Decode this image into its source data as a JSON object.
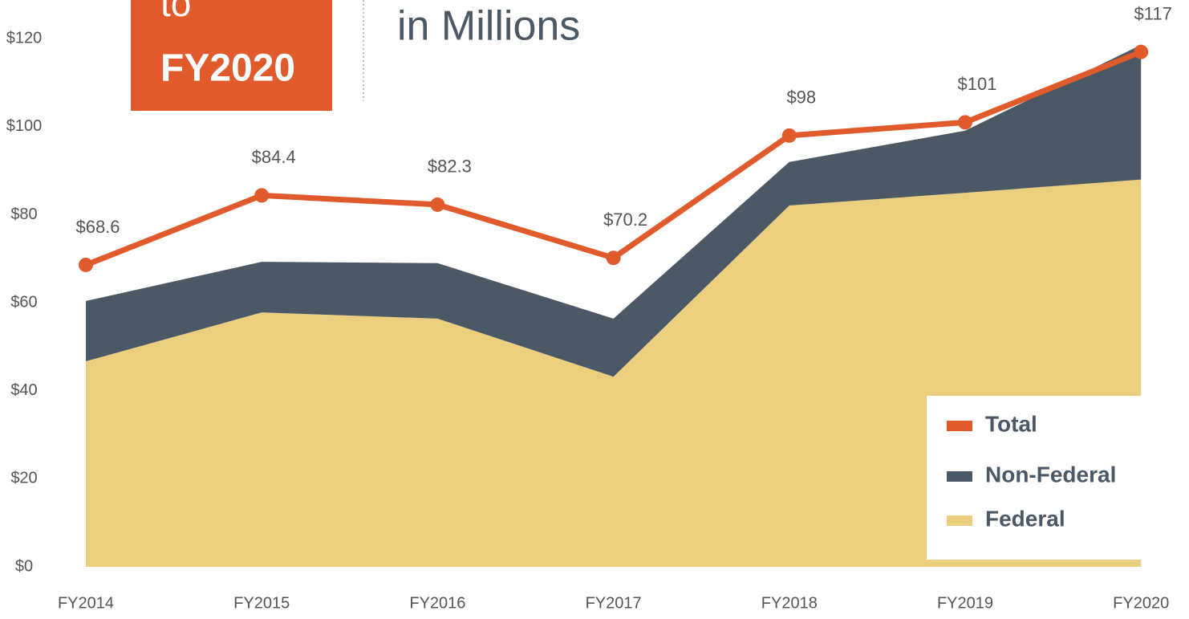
{
  "chart_data": {
    "type": "stacked-area",
    "title": [
      "to",
      "FY2020"
    ],
    "subtitle": "in Millions",
    "categories": [
      "FY2014",
      "FY2015",
      "FY2016",
      "FY2017",
      "FY2018",
      "FY2019",
      "FY2020"
    ],
    "series": [
      {
        "name": "Total",
        "color": "#e05a2b",
        "values": [
          68.6,
          84.4,
          82.3,
          70.2,
          98,
          101,
          117
        ],
        "value_labels": [
          "$68.6",
          "$84.4",
          "$82.3",
          "$70.2",
          "$98",
          "$101",
          "$117"
        ]
      },
      {
        "name": "Non-Federal",
        "color": "#4b5866",
        "values": [
          13.7,
          11.5,
          12.6,
          13.2,
          9.9,
          14.1,
          30.6
        ]
      },
      {
        "name": "Federal",
        "color": "#ebcf7f",
        "values": [
          46.7,
          57.8,
          56.4,
          43.2,
          82.1,
          85,
          88
        ]
      }
    ],
    "ylim": [
      0,
      128.8
    ],
    "yticks": [
      {
        "value": 0,
        "label": "$0"
      },
      {
        "value": 20,
        "label": "$20"
      },
      {
        "value": 40,
        "label": "$40"
      },
      {
        "value": 60,
        "label": "$60"
      },
      {
        "value": 80,
        "label": "$80"
      },
      {
        "value": 100,
        "label": "$100"
      },
      {
        "value": 120,
        "label": "$120"
      }
    ],
    "legend": "bottom-right"
  }
}
